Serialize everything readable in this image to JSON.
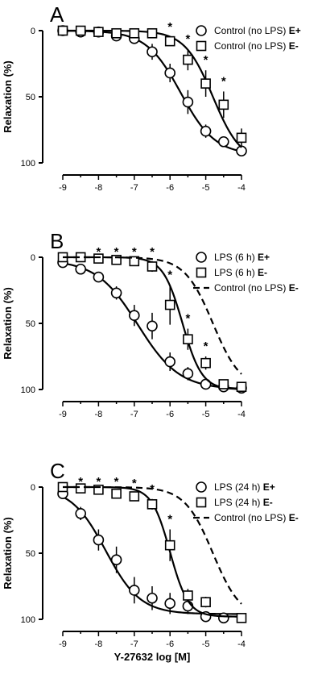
{
  "chart_data": [
    {
      "panel": "A",
      "type": "line",
      "xlabel": "",
      "ylabel": "Relaxation (%)",
      "xlim": [
        -9,
        -4
      ],
      "ylim": [
        0,
        100
      ],
      "y_inverted": true,
      "x_ticks": [
        "-9",
        "-8",
        "-7",
        "-6",
        "-5",
        "-4"
      ],
      "y_ticks": [
        "0",
        "50",
        "100"
      ],
      "legend_position": "top-right",
      "series": [
        {
          "label": "Control (no LPS)",
          "bold_suffix": "E+",
          "marker": "circle",
          "line": "solid",
          "x": [
            -9,
            -8.5,
            -8,
            -7.5,
            -7,
            -6.5,
            -6,
            -5.5,
            -5,
            -4.5,
            -4
          ],
          "y": [
            0,
            1,
            1,
            4,
            6,
            16,
            32,
            54,
            76,
            84,
            91
          ],
          "err": [
            1,
            1,
            2,
            2,
            3,
            6,
            7,
            9,
            5,
            4,
            4
          ],
          "fit": {
            "bottom": 0,
            "top": 94,
            "log_ec50": -5.7,
            "hill": 0.9
          },
          "sig_x": []
        },
        {
          "label": "Control (no LPS)",
          "bold_suffix": "E-",
          "marker": "square",
          "line": "solid",
          "x": [
            -9,
            -8.5,
            -8,
            -7.5,
            -7,
            -6.5,
            -6,
            -5.5,
            -5,
            -4.5,
            -4
          ],
          "y": [
            0,
            0,
            1,
            2,
            2,
            2,
            8,
            22,
            40,
            56,
            81
          ],
          "err": [
            1,
            1,
            1,
            1,
            1,
            2,
            3,
            8,
            10,
            10,
            7
          ],
          "fit": {
            "bottom": 0,
            "top": 100,
            "log_ec50": -4.8,
            "hill": 1.1
          },
          "sig_x": [
            -6,
            -5.5,
            -5,
            -4.5
          ]
        }
      ]
    },
    {
      "panel": "B",
      "type": "line",
      "xlabel": "",
      "ylabel": "Relaxation (%)",
      "xlim": [
        -9,
        -4
      ],
      "ylim": [
        0,
        100
      ],
      "y_inverted": true,
      "x_ticks": [
        "-9",
        "-8",
        "-7",
        "-6",
        "-5",
        "-4"
      ],
      "y_ticks": [
        "0",
        "50",
        "100"
      ],
      "legend_position": "top-right",
      "series": [
        {
          "label": "LPS (6 h)",
          "bold_suffix": "E+",
          "marker": "circle",
          "line": "solid",
          "x": [
            -9,
            -8.5,
            -8,
            -7.5,
            -7,
            -6.5,
            -6,
            -5.5,
            -5,
            -4.5,
            -4
          ],
          "y": [
            4,
            9,
            15,
            27,
            44,
            52,
            79,
            88,
            96,
            98,
            99
          ],
          "err": [
            1,
            2,
            3,
            5,
            8,
            10,
            7,
            5,
            3,
            2,
            2
          ],
          "fit": {
            "bottom": 2,
            "top": 100,
            "log_ec50": -6.9,
            "hill": 0.75
          },
          "sig_x": []
        },
        {
          "label": "LPS (6 h)",
          "bold_suffix": "E-",
          "marker": "square",
          "line": "solid",
          "x": [
            -9,
            -8.5,
            -8,
            -7.5,
            -7,
            -6.5,
            -6,
            -5.5,
            -5,
            -4.5,
            -4
          ],
          "y": [
            0,
            0,
            1,
            2,
            3,
            7,
            36,
            62,
            80,
            96,
            98
          ],
          "err": [
            1,
            1,
            1,
            1,
            2,
            4,
            15,
            8,
            5,
            2,
            2
          ],
          "fit": {
            "bottom": 0,
            "top": 100,
            "log_ec50": -5.65,
            "hill": 1.6
          },
          "sig_x": [
            -8,
            -7.5,
            -7,
            -6.5,
            -6,
            -5.5,
            -5
          ]
        },
        {
          "label": "Control (no LPS)",
          "bold_suffix": "E-",
          "marker": "none",
          "line": "dashed",
          "x": [],
          "y": [],
          "err": [],
          "fit": {
            "bottom": 0,
            "top": 100,
            "log_ec50": -4.8,
            "hill": 1.1
          },
          "sig_x": []
        }
      ]
    },
    {
      "panel": "C",
      "type": "line",
      "xlabel": "Y-27632 log [M]",
      "ylabel": "Relaxation (%)",
      "xlim": [
        -9,
        -4
      ],
      "ylim": [
        0,
        100
      ],
      "y_inverted": true,
      "x_ticks": [
        "-9",
        "-8",
        "-7",
        "-6",
        "-5",
        "-4"
      ],
      "y_ticks": [
        "0",
        "50",
        "100"
      ],
      "legend_position": "top-right",
      "series": [
        {
          "label": "LPS (24 h)",
          "bold_suffix": "E+",
          "marker": "circle",
          "line": "solid",
          "x": [
            -9,
            -8.5,
            -8,
            -7.5,
            -7,
            -6.5,
            -6,
            -5.5,
            -5,
            -4.5
          ],
          "y": [
            5,
            20,
            40,
            55,
            78,
            84,
            88,
            90,
            98,
            99
          ],
          "err": [
            2,
            5,
            8,
            10,
            10,
            9,
            8,
            6,
            4,
            3
          ],
          "fit": {
            "bottom": 0,
            "top": 96,
            "log_ec50": -7.8,
            "hill": 0.9
          },
          "sig_x": []
        },
        {
          "label": "LPS (24 h)",
          "bold_suffix": "E-",
          "marker": "square",
          "line": "solid",
          "x": [
            -9,
            -8.5,
            -8,
            -7.5,
            -7,
            -6.5,
            -6,
            -5.5,
            -5,
            -4
          ],
          "y": [
            0,
            1,
            2,
            5,
            7,
            13,
            44,
            82,
            87,
            99
          ],
          "err": [
            1,
            1,
            1,
            2,
            2,
            4,
            12,
            5,
            4,
            2
          ],
          "fit": {
            "bottom": 0,
            "top": 98,
            "log_ec50": -6.0,
            "hill": 1.7
          },
          "sig_x": [
            -8.5,
            -8,
            -7.5,
            -7,
            -6.5,
            -6
          ]
        },
        {
          "label": "Control (no LPS)",
          "bold_suffix": "E-",
          "marker": "none",
          "line": "dashed",
          "x": [],
          "y": [],
          "err": [],
          "fit": {
            "bottom": 0,
            "top": 100,
            "log_ec50": -4.8,
            "hill": 1.1
          },
          "sig_x": []
        }
      ]
    }
  ]
}
